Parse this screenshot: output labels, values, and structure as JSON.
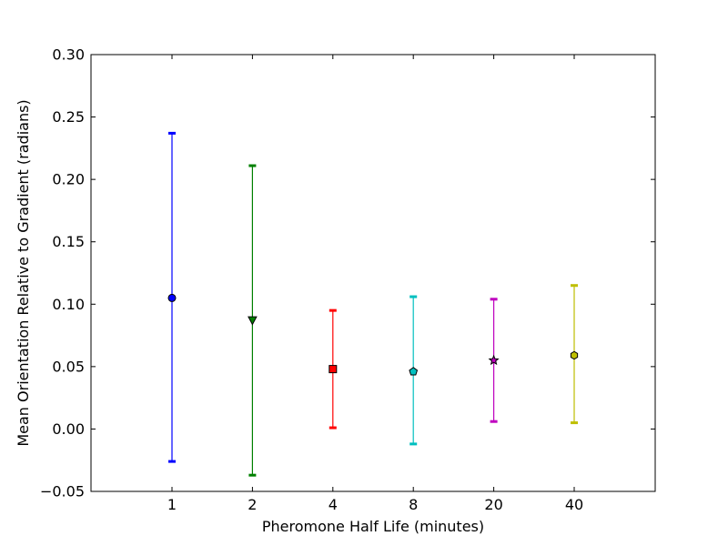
{
  "chart_data": {
    "type": "scatter",
    "title": "",
    "xlabel": "Pheromone Half Life (minutes)",
    "ylabel": "Mean Orientation Relative to Gradient (radians)",
    "categories": [
      "1",
      "2",
      "4",
      "8",
      "20",
      "40"
    ],
    "ylim": [
      -0.05,
      0.3
    ],
    "yticks": [
      "−0.05",
      "0.00",
      "0.05",
      "0.10",
      "0.15",
      "0.20",
      "0.25",
      "0.30"
    ],
    "grid": false,
    "legend": "none",
    "points": [
      {
        "category": "1",
        "mean": 0.105,
        "lower": -0.026,
        "upper": 0.237,
        "color": "#0000ff",
        "marker": "circle",
        "marker_face": "#0000ff"
      },
      {
        "category": "2",
        "mean": 0.087,
        "lower": -0.037,
        "upper": 0.211,
        "color": "#008000",
        "marker": "triangle-down",
        "marker_face": "#008000"
      },
      {
        "category": "4",
        "mean": 0.048,
        "lower": 0.001,
        "upper": 0.095,
        "color": "#ff0000",
        "marker": "square",
        "marker_face": "#ff0000"
      },
      {
        "category": "8",
        "mean": 0.046,
        "lower": -0.012,
        "upper": 0.106,
        "color": "#00bfbf",
        "marker": "pentagon",
        "marker_face": "#00bfbf"
      },
      {
        "category": "20",
        "mean": 0.055,
        "lower": 0.006,
        "upper": 0.104,
        "color": "#bf00bf",
        "marker": "star",
        "marker_face": "#bf00bf"
      },
      {
        "category": "40",
        "mean": 0.059,
        "lower": 0.005,
        "upper": 0.115,
        "color": "#bfbf00",
        "marker": "hexagon",
        "marker_face": "#bfbf00"
      }
    ]
  }
}
